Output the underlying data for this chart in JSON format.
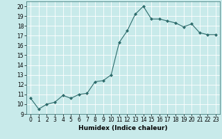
{
  "x": [
    0,
    1,
    2,
    3,
    4,
    5,
    6,
    7,
    8,
    9,
    10,
    11,
    12,
    13,
    14,
    15,
    16,
    17,
    18,
    19,
    20,
    21,
    22,
    23
  ],
  "y": [
    10.6,
    9.5,
    10.0,
    10.2,
    10.9,
    10.6,
    11.0,
    11.1,
    12.3,
    12.4,
    13.0,
    16.3,
    17.5,
    19.2,
    20.0,
    18.7,
    18.7,
    18.5,
    18.3,
    17.9,
    18.2,
    17.3,
    17.1,
    17.1
  ],
  "title": "",
  "xlabel": "Humidex (Indice chaleur)",
  "ylabel": "",
  "xlim": [
    -0.5,
    23.5
  ],
  "ylim": [
    9,
    20.5
  ],
  "yticks": [
    9,
    10,
    11,
    12,
    13,
    14,
    15,
    16,
    17,
    18,
    19,
    20
  ],
  "xticks": [
    0,
    1,
    2,
    3,
    4,
    5,
    6,
    7,
    8,
    9,
    10,
    11,
    12,
    13,
    14,
    15,
    16,
    17,
    18,
    19,
    20,
    21,
    22,
    23
  ],
  "line_color": "#2d6b6b",
  "marker": "D",
  "marker_size": 2.0,
  "bg_color": "#c8eaea",
  "grid_color": "#ffffff",
  "tick_fontsize": 5.5,
  "xlabel_fontsize": 6.5
}
